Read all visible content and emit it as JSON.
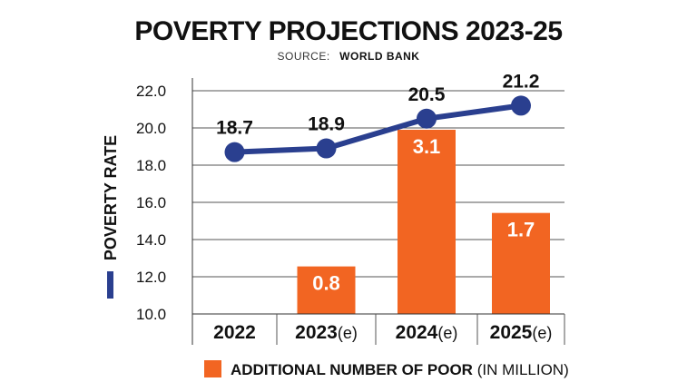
{
  "header": {
    "title": "POVERTY PROJECTIONS 2023-25",
    "source_label": "SOURCE:",
    "source_name": "WORLD BANK"
  },
  "chart_data": {
    "type": "bar",
    "title": "POVERTY PROJECTIONS 2023-25",
    "categories": [
      "2022",
      "2023",
      "2024",
      "2025"
    ],
    "category_suffixes": [
      "",
      "(e)",
      "(e)",
      "(e)"
    ],
    "ylabel": "POVERTY RATE",
    "ylim": [
      10.0,
      22.0
    ],
    "yticks": [
      "10.0",
      "12.0",
      "14.0",
      "16.0",
      "18.0",
      "20.0",
      "22.0"
    ],
    "series": [
      {
        "name": "POVERTY RATE",
        "type": "line",
        "color": "#2a3f8f",
        "values": [
          18.7,
          18.9,
          20.5,
          21.2
        ],
        "labels": [
          "18.7",
          "18.9",
          "20.5",
          "21.2"
        ]
      },
      {
        "name": "ADDITIONAL NUMBER OF POOR",
        "unit": "(IN MILLION)",
        "type": "bar",
        "color": "#f26522",
        "values": [
          null,
          0.8,
          3.1,
          1.7
        ],
        "labels": [
          "",
          "0.8",
          "3.1",
          "1.7"
        ]
      }
    ],
    "legend": {
      "bar_label": "ADDITIONAL NUMBER OF POOR",
      "bar_label_suffix": "(IN MILLION)",
      "line_label": "POVERTY RATE"
    }
  }
}
